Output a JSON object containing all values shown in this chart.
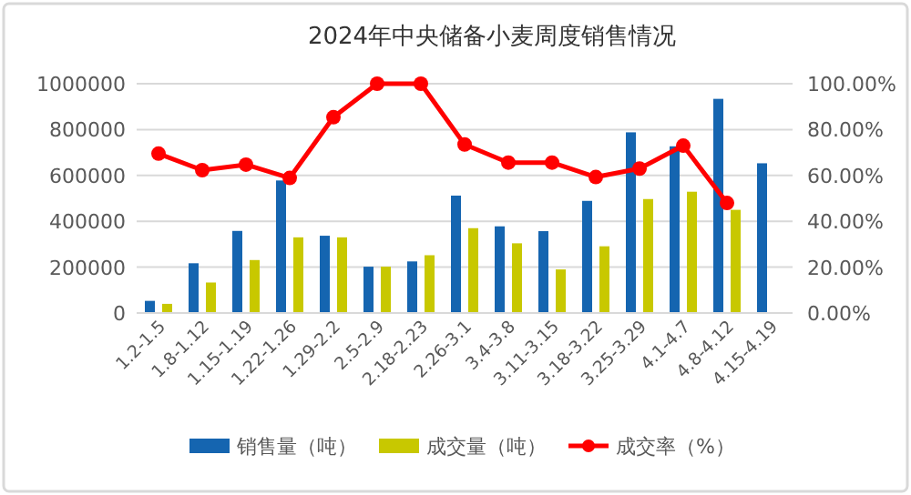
{
  "chart_data": {
    "type": "bar",
    "title": "2024年中央储备小麦周度销售情况",
    "categories": [
      "1.2-1.5",
      "1.8-1.12",
      "1.15-1.19",
      "1.22-1.26",
      "1.29-2.2",
      "2.5-2.9",
      "2.18-2.23",
      "2.26-3.1",
      "3.4-3.8",
      "3.11-3.15",
      "3.18-3.22",
      "3.25-3.29",
      "4.1-4.7",
      "4.8-4.12",
      "4.15-4.19"
    ],
    "series": [
      {
        "name": "销售量（吨）",
        "color": "#1565b0",
        "values": [
          53000,
          217000,
          358000,
          578000,
          337000,
          202000,
          225000,
          512000,
          378000,
          357000,
          489000,
          788000,
          727000,
          934000,
          653000
        ]
      },
      {
        "name": "成交量（吨）",
        "color": "#c8c800",
        "values": [
          40000,
          133000,
          231000,
          330000,
          330000,
          202000,
          252000,
          370000,
          304000,
          190000,
          291000,
          497000,
          529000,
          450000,
          null
        ]
      },
      {
        "name": "成交率（%）",
        "type": "line",
        "axis": "y2",
        "color": "#ff0000",
        "marker": "circle",
        "values": [
          69.5,
          62.3,
          64.7,
          58.9,
          85.4,
          100,
          100,
          73.5,
          65.6,
          65.6,
          59.3,
          63,
          73,
          48,
          null
        ]
      }
    ],
    "ylim": [
      0,
      1000000
    ],
    "yticks": [
      0,
      200000,
      400000,
      600000,
      800000,
      1000000
    ],
    "y2lim": [
      0,
      100
    ],
    "y2ticks": [
      {
        "value": 0,
        "label": "0.00%"
      },
      {
        "value": 20,
        "label": "20.00%"
      },
      {
        "value": 40,
        "label": "40.00%"
      },
      {
        "value": 60,
        "label": "60.00%"
      },
      {
        "value": 80,
        "label": "80.00%"
      },
      {
        "value": 100,
        "label": "100.00%"
      }
    ],
    "grid": "y",
    "legend": "bottom"
  }
}
